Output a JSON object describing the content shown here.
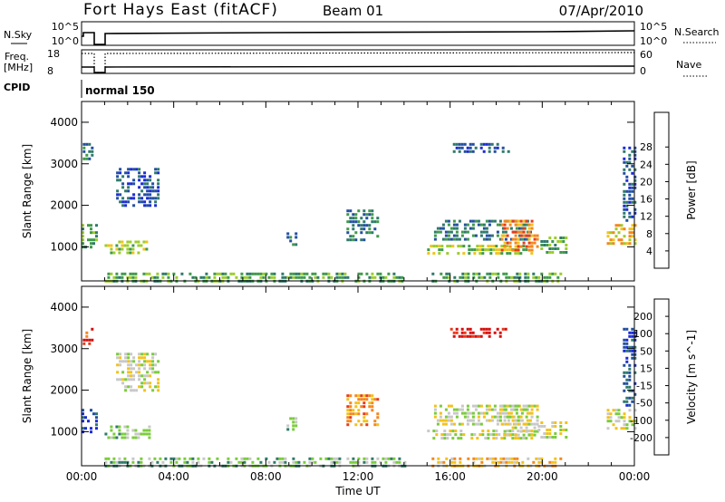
{
  "header": {
    "station": "Fort Hays East (fitACF)",
    "beam": "Beam 01",
    "date": "07/Apr/2010"
  },
  "strips": {
    "nsky_label": "N.Sky",
    "nsky_ticks": [
      "10^5",
      "10^0"
    ],
    "nsearch_label": "N.Search",
    "nsearch_ticks": [
      "10^5",
      "10^0"
    ],
    "freq_label_1": "Freq.",
    "freq_label_2": "[MHz]",
    "freq_ticks": [
      "18",
      "8"
    ],
    "nave_label": "Nave",
    "nave_ticks": [
      "60",
      "0"
    ],
    "cpid_label": "CPID",
    "cpid_value": "normal 150"
  },
  "chart_data": [
    {
      "type": "heatmap",
      "name": "power",
      "ylabel": "Slant Range [km]",
      "xlabel": "",
      "xlim": [
        0,
        24
      ],
      "ylim": [
        180,
        4500
      ],
      "yticks": [
        "1000",
        "2000",
        "3000",
        "4000"
      ],
      "colorbar_label": "Power [dB]",
      "colorbar_ticks": [
        "4",
        "8",
        "12",
        "16",
        "20",
        "24",
        "28"
      ],
      "colors": [
        "#1a2bd6",
        "#234fa0",
        "#2f7a6a",
        "#3f9a4a",
        "#9ccc2a",
        "#f2c21a",
        "#f4871c",
        "#e83a1a",
        "#d60f0f"
      ],
      "bands": [
        {
          "t0": 1.0,
          "t1": 3.0,
          "r0": 850,
          "r1": 1150,
          "level": 4
        },
        {
          "t0": 0.0,
          "t1": 0.6,
          "r0": 950,
          "r1": 1550,
          "level": 3
        },
        {
          "t0": 0.05,
          "t1": 0.5,
          "r0": 3150,
          "r1": 3500,
          "level": 2
        },
        {
          "t0": 1.5,
          "t1": 3.3,
          "r0": 2000,
          "r1": 2900,
          "level": 1
        },
        {
          "t0": 1.0,
          "t1": 14.0,
          "r0": 200,
          "r1": 380,
          "level": 3
        },
        {
          "t0": 15.2,
          "t1": 20.8,
          "r0": 200,
          "r1": 380,
          "level": 3
        },
        {
          "t0": 8.9,
          "t1": 9.3,
          "r0": 1050,
          "r1": 1350,
          "level": 2
        },
        {
          "t0": 11.5,
          "t1": 12.8,
          "r0": 1150,
          "r1": 1900,
          "level": 2
        },
        {
          "t0": 15.0,
          "t1": 19.5,
          "r0": 850,
          "r1": 1050,
          "level": 4
        },
        {
          "t0": 15.3,
          "t1": 19.5,
          "r0": 1200,
          "r1": 1650,
          "level": 2
        },
        {
          "t0": 18.2,
          "t1": 19.8,
          "r0": 900,
          "r1": 1650,
          "level": 6
        },
        {
          "t0": 19.8,
          "t1": 21.0,
          "r0": 850,
          "r1": 1250,
          "level": 3
        },
        {
          "t0": 16.0,
          "t1": 18.5,
          "r0": 3300,
          "r1": 3500,
          "level": 1
        },
        {
          "t0": 22.8,
          "t1": 24.0,
          "r0": 1050,
          "r1": 1550,
          "level": 5
        },
        {
          "t0": 23.5,
          "t1": 24.0,
          "r0": 1600,
          "r1": 3500,
          "level": 1
        }
      ]
    },
    {
      "type": "heatmap",
      "name": "velocity",
      "ylabel": "Slant Range [km]",
      "xlabel": "Time UT",
      "xlim": [
        0,
        24
      ],
      "ylim": [
        180,
        4500
      ],
      "yticks": [
        "1000",
        "2000",
        "3000",
        "4000"
      ],
      "xticks": [
        "00:00",
        "04:00",
        "08:00",
        "12:00",
        "16:00",
        "20:00",
        "00:00"
      ],
      "colorbar_label": "Velocity [m s^-1]",
      "colorbar_ticks": [
        "200",
        "100",
        "50",
        "15",
        "-15",
        "-50",
        "-100",
        "-200"
      ],
      "colors": [
        "#1a2bd6",
        "#234fa0",
        "#2f7a6a",
        "#7acc3a",
        "#c8c8c8",
        "#f2c21a",
        "#f4871c",
        "#e83a1a",
        "#d60f0f"
      ],
      "bands": [
        {
          "t0": 1.0,
          "t1": 3.0,
          "r0": 850,
          "r1": 1150,
          "level": 3
        },
        {
          "t0": 0.0,
          "t1": 0.6,
          "r0": 950,
          "r1": 1550,
          "level": 1
        },
        {
          "t0": 0.05,
          "t1": 0.5,
          "r0": 3150,
          "r1": 3500,
          "level": 7
        },
        {
          "t0": 1.5,
          "t1": 3.3,
          "r0": 2000,
          "r1": 2900,
          "level": 4
        },
        {
          "t0": 1.0,
          "t1": 14.0,
          "r0": 200,
          "r1": 380,
          "level": 3
        },
        {
          "t0": 15.2,
          "t1": 20.8,
          "r0": 200,
          "r1": 380,
          "level": 5
        },
        {
          "t0": 8.9,
          "t1": 9.3,
          "r0": 1050,
          "r1": 1350,
          "level": 3
        },
        {
          "t0": 11.5,
          "t1": 12.8,
          "r0": 1150,
          "r1": 1900,
          "level": 6
        },
        {
          "t0": 15.0,
          "t1": 19.5,
          "r0": 850,
          "r1": 1050,
          "level": 4
        },
        {
          "t0": 15.3,
          "t1": 19.5,
          "r0": 1200,
          "r1": 1650,
          "level": 4
        },
        {
          "t0": 18.2,
          "t1": 19.8,
          "r0": 900,
          "r1": 1650,
          "level": 4
        },
        {
          "t0": 19.8,
          "t1": 21.0,
          "r0": 850,
          "r1": 1250,
          "level": 4
        },
        {
          "t0": 16.0,
          "t1": 18.5,
          "r0": 3300,
          "r1": 3500,
          "level": 8
        },
        {
          "t0": 22.8,
          "t1": 24.0,
          "r0": 1050,
          "r1": 1550,
          "level": 4
        },
        {
          "t0": 23.5,
          "t1": 24.0,
          "r0": 1600,
          "r1": 3500,
          "level": 1
        }
      ]
    }
  ]
}
